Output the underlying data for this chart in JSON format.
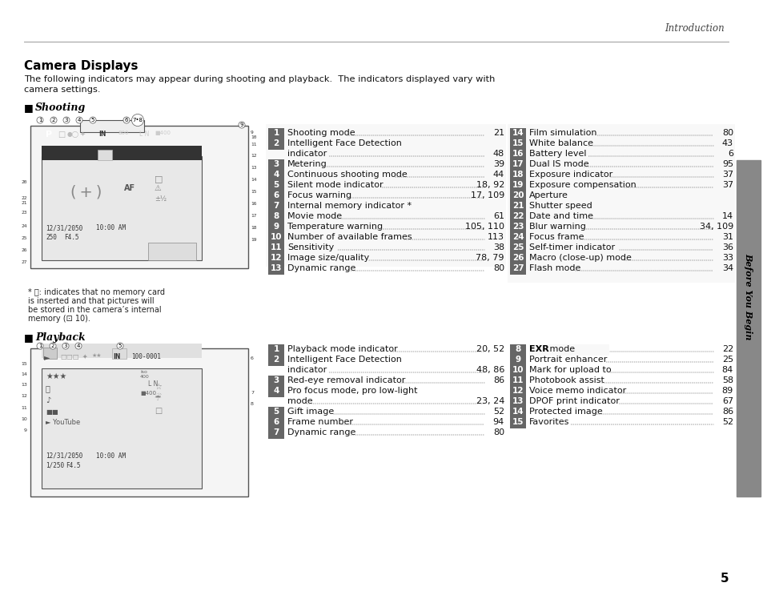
{
  "page_bg": "#ffffff",
  "header_text": "Introduction",
  "title": "Camera Displays",
  "subtitle1": "The following indicators may appear during shooting and playback.  The indicators displayed vary with",
  "subtitle2": "camera settings.",
  "section1_title": "Shooting",
  "section2_title": "Playback",
  "sidebar_text": "Before You Begin",
  "page_number": "5",
  "shooting_items_col1": [
    [
      "1",
      "Shooting mode",
      "21"
    ],
    [
      "2",
      "Intelligent Face Detection\nindicator",
      "48"
    ],
    [
      "3",
      "Metering",
      "39"
    ],
    [
      "4",
      "Continuous shooting mode",
      "44"
    ],
    [
      "5",
      "Silent mode indicator",
      "18, 92"
    ],
    [
      "6",
      "Focus warning",
      "17, 109"
    ],
    [
      "7",
      "Internal memory indicator *",
      ""
    ],
    [
      "8",
      "Movie mode",
      "61"
    ],
    [
      "9",
      "Temperature warning",
      "105, 110"
    ],
    [
      "10",
      "Number of available frames",
      "113"
    ],
    [
      "11",
      "Sensitivity",
      "38"
    ],
    [
      "12",
      "Image size/quality",
      "78, 79"
    ],
    [
      "13",
      "Dynamic range",
      "80"
    ]
  ],
  "shooting_items_col2": [
    [
      "14",
      "Film simulation",
      "80"
    ],
    [
      "15",
      "White balance",
      "43"
    ],
    [
      "16",
      "Battery level",
      "6"
    ],
    [
      "17",
      "Dual IS mode",
      "95"
    ],
    [
      "18",
      "Exposure indicator",
      "37"
    ],
    [
      "19",
      "Exposure compensation",
      "37"
    ],
    [
      "20",
      "Aperture",
      ""
    ],
    [
      "21",
      "Shutter speed",
      ""
    ],
    [
      "22",
      "Date and time",
      "14"
    ],
    [
      "23",
      "Blur warning",
      "34, 109"
    ],
    [
      "24",
      "Focus frame",
      "31"
    ],
    [
      "25",
      "Self-timer indicator",
      "36"
    ],
    [
      "26",
      "Macro (close-up) mode",
      "33"
    ],
    [
      "27",
      "Flash mode",
      "34"
    ]
  ],
  "playback_items_col1": [
    [
      "1",
      "Playback mode indicator",
      "20, 52"
    ],
    [
      "2",
      "Intelligent Face Detection\nindicator",
      "48, 86"
    ],
    [
      "3",
      "Red-eye removal indicator",
      "86"
    ],
    [
      "4",
      "Pro focus mode, pro low-light\nmode",
      "23, 24"
    ],
    [
      "5",
      "Gift image",
      "52"
    ],
    [
      "6",
      "Frame number",
      "94"
    ],
    [
      "7",
      "Dynamic range",
      "80"
    ]
  ],
  "playback_items_col2": [
    [
      "8",
      "EXR mode",
      "22"
    ],
    [
      "9",
      "Portrait enhancer",
      "25"
    ],
    [
      "10",
      "Mark for upload to",
      "84"
    ],
    [
      "11",
      "Photobook assist",
      "58"
    ],
    [
      "12",
      "Voice memo indicator",
      "89"
    ],
    [
      "13",
      "DPOF print indicator",
      "67"
    ],
    [
      "14",
      "Protected image",
      "86"
    ],
    [
      "15",
      "Favorites",
      "52"
    ]
  ],
  "footnote_lines": [
    "* ⓘ: indicates that no memory card",
    "is inserted and that pictures will",
    "be stored in the camera’s internal",
    "memory (⊡ 10)."
  ]
}
